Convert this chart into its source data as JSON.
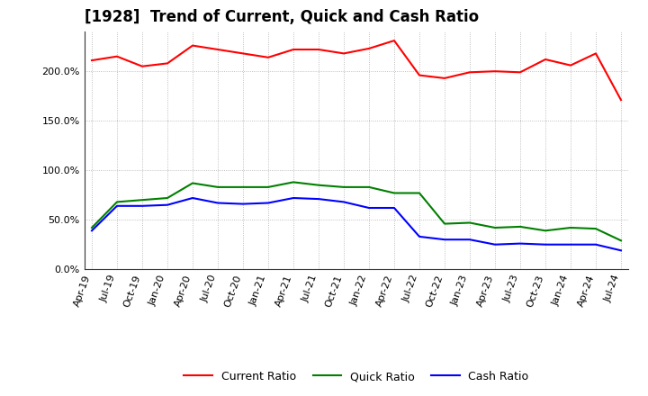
{
  "title": "[1928]  Trend of Current, Quick and Cash Ratio",
  "labels": [
    "Apr-19",
    "Jul-19",
    "Oct-19",
    "Jan-20",
    "Apr-20",
    "Jul-20",
    "Oct-20",
    "Jan-21",
    "Apr-21",
    "Jul-21",
    "Oct-21",
    "Jan-22",
    "Apr-22",
    "Jul-22",
    "Oct-22",
    "Jan-23",
    "Apr-23",
    "Jul-23",
    "Oct-23",
    "Jan-24",
    "Apr-24",
    "Jul-24"
  ],
  "current_ratio": [
    211.0,
    215.0,
    205.0,
    208.0,
    226.0,
    222.0,
    218.0,
    214.0,
    222.0,
    222.0,
    218.0,
    223.0,
    231.0,
    196.0,
    193.0,
    199.0,
    200.0,
    199.0,
    212.0,
    206.0,
    218.0,
    171.0
  ],
  "quick_ratio": [
    42.0,
    68.0,
    70.0,
    72.0,
    87.0,
    83.0,
    83.0,
    83.0,
    88.0,
    85.0,
    83.0,
    83.0,
    77.0,
    77.0,
    46.0,
    47.0,
    42.0,
    43.0,
    39.0,
    42.0,
    41.0,
    29.0
  ],
  "cash_ratio": [
    39.0,
    64.0,
    64.0,
    65.0,
    72.0,
    67.0,
    66.0,
    67.0,
    72.0,
    71.0,
    68.0,
    62.0,
    62.0,
    33.0,
    30.0,
    30.0,
    25.0,
    26.0,
    25.0,
    25.0,
    25.0,
    19.0
  ],
  "current_color": "#ff0000",
  "quick_color": "#008000",
  "cash_color": "#0000ff",
  "ylim": [
    0,
    240
  ],
  "yticks": [
    0,
    50,
    100,
    150,
    200
  ],
  "ytick_labels": [
    "0.0%",
    "50.0%",
    "100.0%",
    "150.0%",
    "200.0%"
  ],
  "background_color": "#ffffff",
  "plot_bg_color": "#ffffff",
  "grid_color": "#999999",
  "title_fontsize": 12,
  "tick_fontsize": 8,
  "legend_labels": [
    "Current Ratio",
    "Quick Ratio",
    "Cash Ratio"
  ]
}
